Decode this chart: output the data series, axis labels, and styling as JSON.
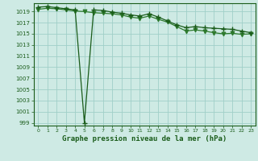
{
  "title": "Graphe pression niveau de la mer (hPa)",
  "bg_color": "#ceeae4",
  "grid_color": "#a0cfc8",
  "line_color_dark": "#1a5c1a",
  "line_color_med": "#2d7a2d",
  "xlim": [
    -0.5,
    23.5
  ],
  "ylim": [
    998.5,
    1020.5
  ],
  "yticks": [
    999,
    1001,
    1003,
    1005,
    1007,
    1009,
    1011,
    1013,
    1015,
    1017,
    1019
  ],
  "xticks": [
    0,
    1,
    2,
    3,
    4,
    5,
    6,
    7,
    8,
    9,
    10,
    11,
    12,
    13,
    14,
    15,
    16,
    17,
    18,
    19,
    20,
    21,
    22,
    23
  ],
  "series1_x": [
    0,
    1,
    2,
    3,
    4,
    5,
    6,
    7,
    8,
    9,
    10,
    11,
    12,
    13,
    14,
    15,
    16,
    17,
    18,
    19,
    20,
    21,
    22,
    23
  ],
  "series1_y": [
    1019.8,
    1019.9,
    1019.7,
    1019.5,
    1019.3,
    999.0,
    1019.3,
    1019.2,
    1018.9,
    1018.7,
    1018.4,
    1018.2,
    1018.6,
    1018.0,
    1017.3,
    1016.6,
    1016.1,
    1016.3,
    1016.1,
    1016.0,
    1015.9,
    1015.8,
    1015.5,
    1015.2
  ],
  "series2_x": [
    0,
    1,
    2,
    3,
    4,
    5,
    6,
    7,
    8,
    9,
    10,
    11,
    12,
    13,
    14,
    15,
    16,
    17,
    18,
    19,
    20,
    21,
    22,
    23
  ],
  "series2_y": [
    1019.4,
    1019.6,
    1019.5,
    1019.3,
    1019.1,
    1019.0,
    1018.8,
    1018.7,
    1018.6,
    1018.4,
    1018.0,
    1017.8,
    1018.2,
    1017.6,
    1017.1,
    1016.3,
    1015.5,
    1015.7,
    1015.5,
    1015.2,
    1015.0,
    1015.1,
    1014.9,
    1015.0
  ]
}
